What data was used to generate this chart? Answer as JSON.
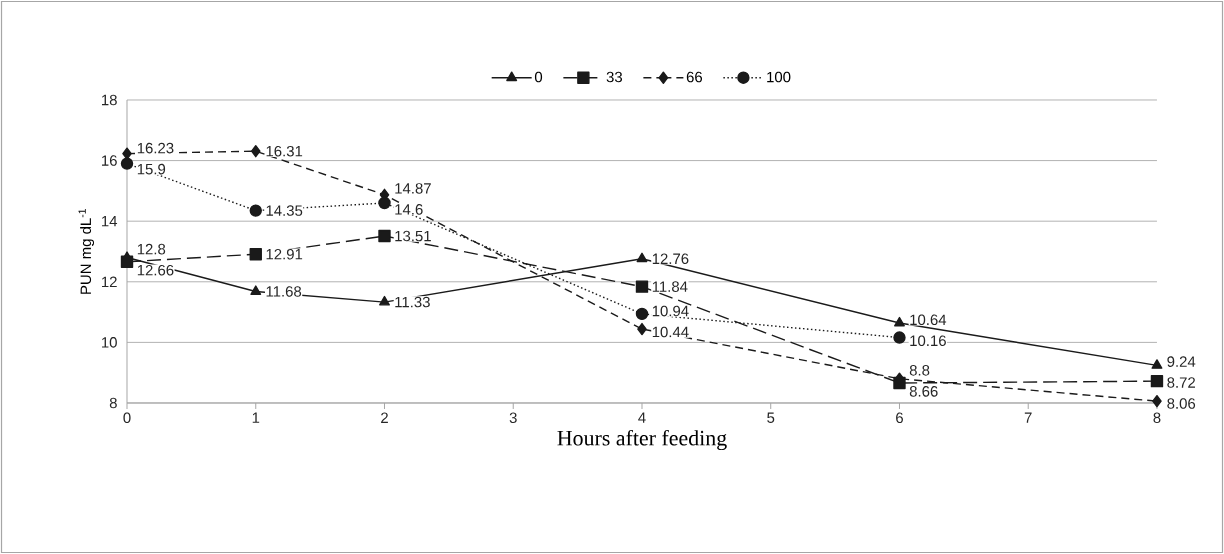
{
  "chart_data": {
    "type": "line",
    "xlabel": "Hours after feeding",
    "ylabel": "PUN mg dL$^{-1}$",
    "x": [
      0,
      1,
      2,
      4,
      6,
      8
    ],
    "series": [
      {
        "name": "0",
        "color": "#1a1a1a",
        "marker": "triangle",
        "line_style": "solid",
        "values": [
          12.8,
          11.68,
          11.33,
          12.76,
          10.64,
          9.24
        ]
      },
      {
        "name": "33",
        "color": "#1a1a1a",
        "marker": "square",
        "line_style": "dashed",
        "values": [
          12.66,
          12.91,
          13.51,
          11.84,
          8.66,
          8.72
        ]
      },
      {
        "name": "66",
        "color": "#1a1a1a",
        "marker": "diamond",
        "line_style": "dashed",
        "values": [
          16.23,
          16.31,
          14.87,
          10.44,
          8.8,
          8.06
        ]
      },
      {
        "name": "100",
        "color": "#1a1a1a",
        "marker": "circle",
        "line_style": "dotted",
        "values": [
          15.9,
          14.35,
          14.6,
          10.94,
          10.16,
          null
        ]
      }
    ],
    "xlim": [
      0,
      8
    ],
    "xticks": [
      0,
      1,
      2,
      3,
      4,
      5,
      6,
      7,
      8
    ],
    "ylim": [
      8,
      18
    ],
    "yticks": [
      8,
      10,
      12,
      14,
      16,
      18
    ],
    "grid": "y",
    "legend": "top",
    "data_labels": true
  }
}
